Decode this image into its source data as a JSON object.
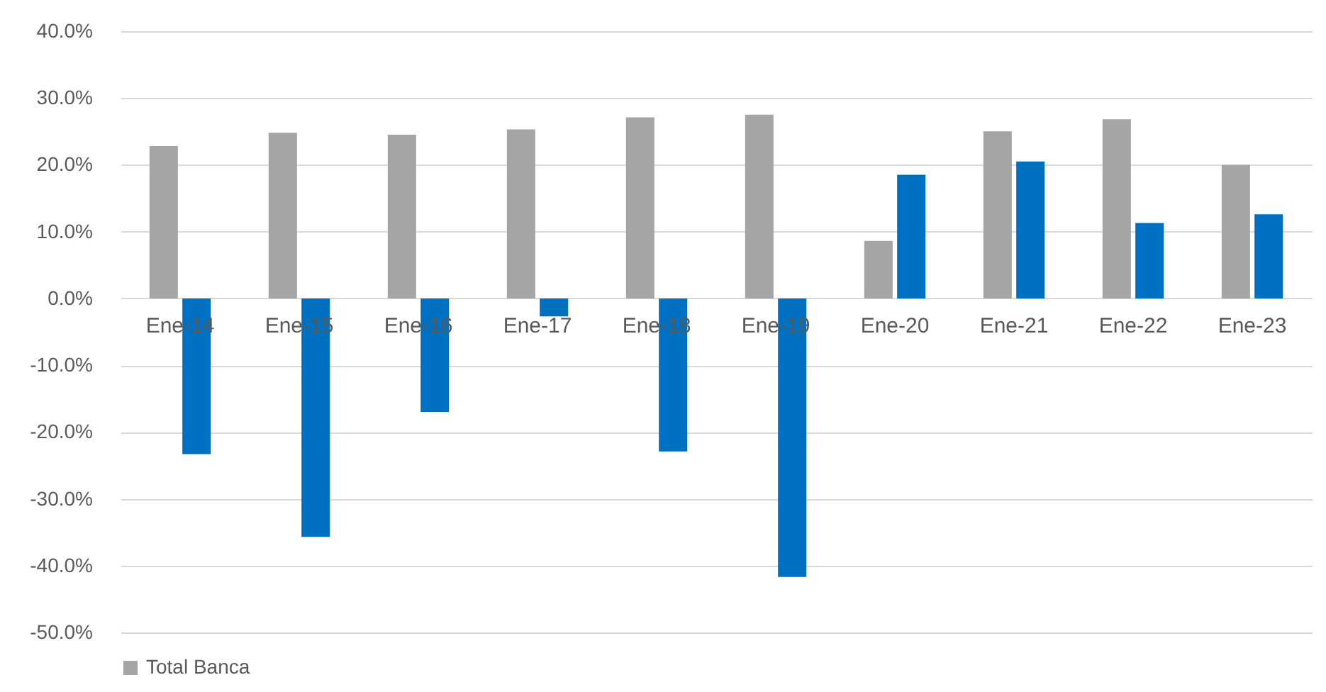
{
  "chart_data": {
    "type": "bar",
    "categories": [
      "Ene-14",
      "Ene-15",
      "Ene-16",
      "Ene-17",
      "Ene-18",
      "Ene-19",
      "Ene-20",
      "Ene-21",
      "Ene-22",
      "Ene-23"
    ],
    "series": [
      {
        "name": "Total Banca",
        "color": "#a5a5a5",
        "values": [
          22.8,
          24.8,
          24.5,
          25.3,
          27.1,
          27.5,
          8.6,
          25.0,
          26.8,
          20.0
        ]
      },
      {
        "color": "#0070c0",
        "values": [
          -23.3,
          -35.7,
          -17.0,
          -2.7,
          -22.9,
          -41.7,
          18.5,
          20.5,
          11.3,
          12.6
        ]
      }
    ],
    "ylim": [
      -50,
      40
    ],
    "yticks": [
      {
        "value": -50,
        "label": "-50.0%"
      },
      {
        "value": -40,
        "label": "-40.0%"
      },
      {
        "value": -30,
        "label": "-30.0%"
      },
      {
        "value": -20,
        "label": "-20.0%"
      },
      {
        "value": -10,
        "label": "-10.0%"
      },
      {
        "value": 0,
        "label": "0.0%"
      },
      {
        "value": 10,
        "label": "10.0%"
      },
      {
        "value": 20,
        "label": "20.0%"
      },
      {
        "value": 30,
        "label": "30.0%"
      },
      {
        "value": 40,
        "label": "40.0%"
      }
    ],
    "grid": "y",
    "legend": "bottom"
  }
}
